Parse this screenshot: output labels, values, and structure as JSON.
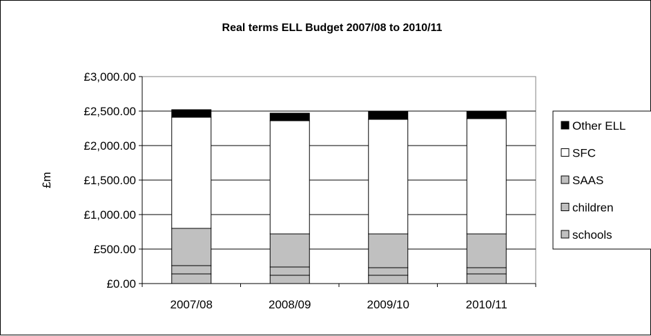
{
  "chart_data": {
    "type": "bar",
    "stacked": true,
    "title": "Real terms ELL Budget 2007/08 to 2010/11",
    "xlabel": "",
    "ylabel": "£m",
    "ylim": [
      0,
      3000
    ],
    "yticks": [
      "£0.00",
      "£500.00",
      "£1,000.00",
      "£1,500.00",
      "£2,000.00",
      "£2,500.00",
      "£3,000.00"
    ],
    "grid": true,
    "legend_position": "right",
    "categories": [
      "2007/08",
      "2008/09",
      "2009/10",
      "2010/11"
    ],
    "series": [
      {
        "name": "schools",
        "values": [
          140,
          120,
          120,
          140
        ],
        "color": "#c0c0c0"
      },
      {
        "name": "children",
        "values": [
          120,
          120,
          110,
          90
        ],
        "color": "#c0c0c0"
      },
      {
        "name": "SAAS",
        "values": [
          540,
          480,
          490,
          490
        ],
        "color": "#c0c0c0"
      },
      {
        "name": "SFC",
        "values": [
          1610,
          1640,
          1660,
          1670
        ],
        "color": "#ffffff"
      },
      {
        "name": "Other ELL",
        "values": [
          110,
          110,
          110,
          110
        ],
        "color": "#000000"
      }
    ]
  }
}
